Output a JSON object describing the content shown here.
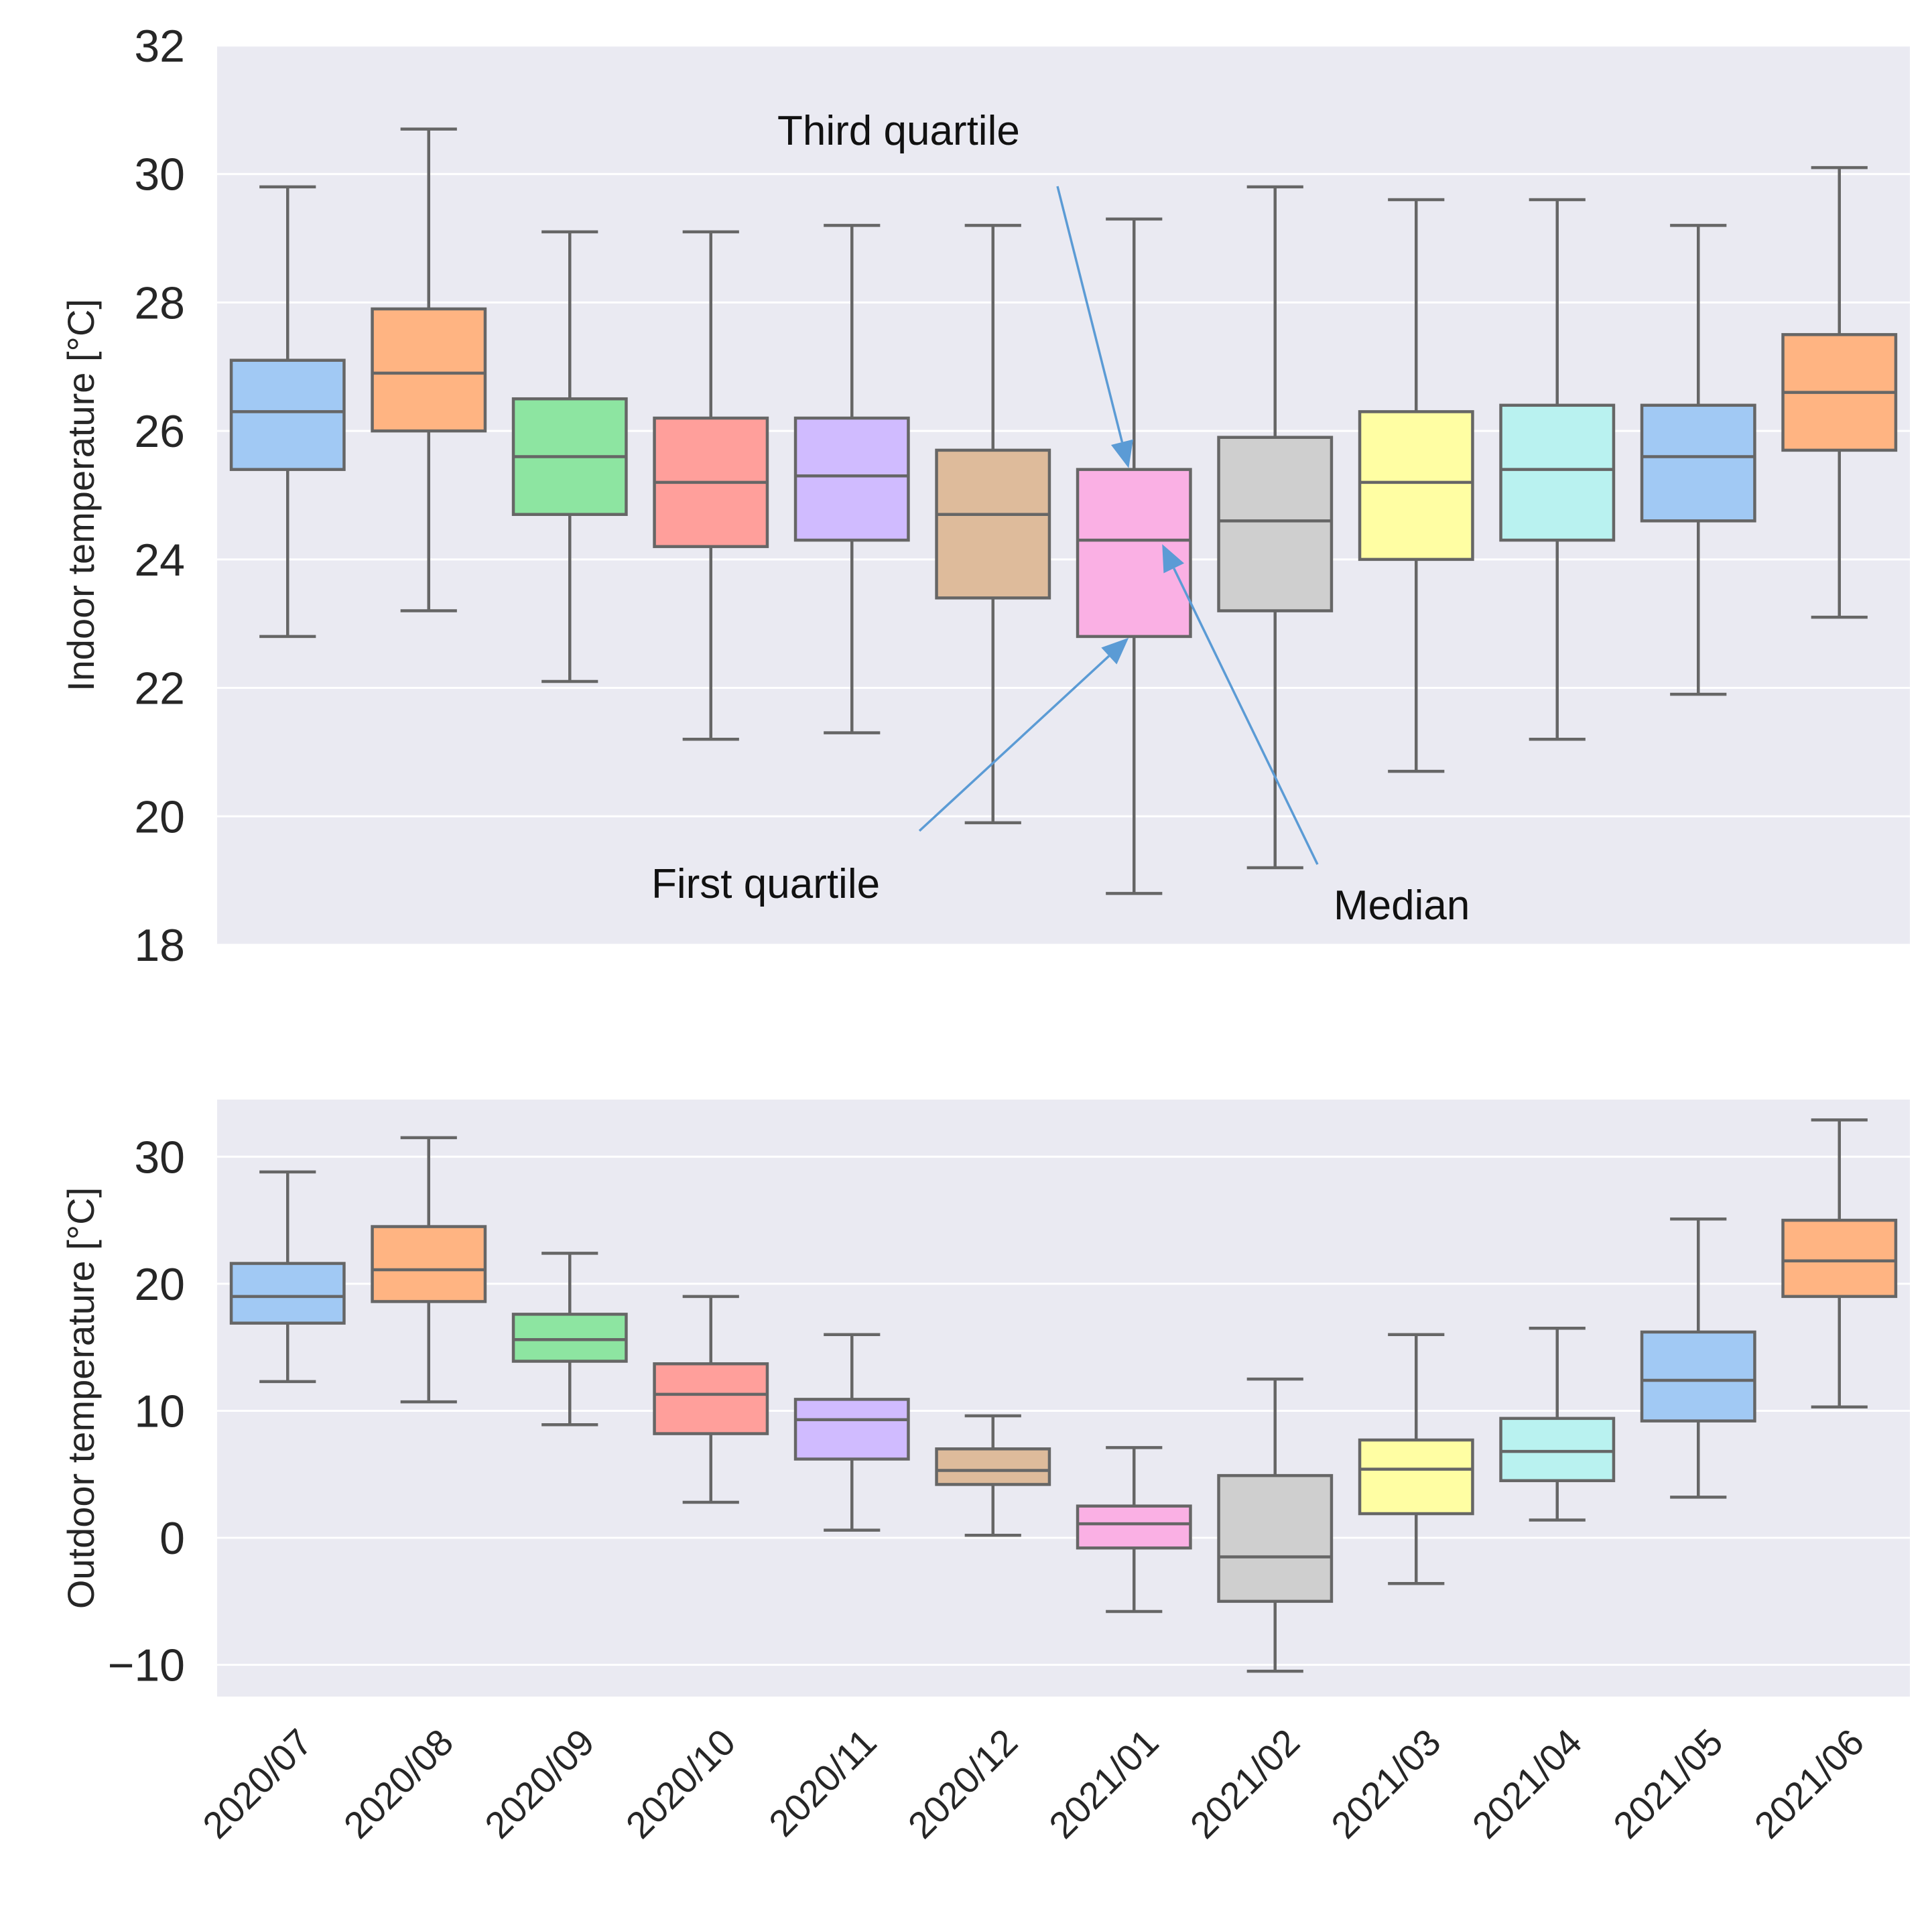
{
  "chart_data": [
    {
      "type": "box",
      "ylabel": "Indoor temperature [°C]",
      "ylim": [
        18,
        32
      ],
      "yticks": [
        18,
        20,
        22,
        24,
        26,
        28,
        30,
        32
      ],
      "grid": true,
      "categories": [
        "2020/07",
        "2020/08",
        "2020/09",
        "2020/10",
        "2020/11",
        "2020/12",
        "2021/01",
        "2021/02",
        "2021/03",
        "2021/04",
        "2021/05",
        "2021/06"
      ],
      "boxes": [
        {
          "whislo": 22.8,
          "q1": 25.4,
          "med": 26.3,
          "q3": 27.1,
          "whishi": 29.8
        },
        {
          "whislo": 23.2,
          "q1": 26.0,
          "med": 26.9,
          "q3": 27.9,
          "whishi": 30.7
        },
        {
          "whislo": 22.1,
          "q1": 24.7,
          "med": 25.6,
          "q3": 26.5,
          "whishi": 29.1
        },
        {
          "whislo": 21.2,
          "q1": 24.2,
          "med": 25.2,
          "q3": 26.2,
          "whishi": 29.1
        },
        {
          "whislo": 21.3,
          "q1": 24.3,
          "med": 25.3,
          "q3": 26.2,
          "whishi": 29.2
        },
        {
          "whislo": 19.9,
          "q1": 23.4,
          "med": 24.7,
          "q3": 25.7,
          "whishi": 29.2
        },
        {
          "whislo": 18.8,
          "q1": 22.8,
          "med": 24.3,
          "q3": 25.4,
          "whishi": 29.3
        },
        {
          "whislo": 19.2,
          "q1": 23.2,
          "med": 24.6,
          "q3": 25.9,
          "whishi": 29.8
        },
        {
          "whislo": 20.7,
          "q1": 24.0,
          "med": 25.2,
          "q3": 26.3,
          "whishi": 29.6
        },
        {
          "whislo": 21.2,
          "q1": 24.3,
          "med": 25.4,
          "q3": 26.4,
          "whishi": 29.6
        },
        {
          "whislo": 21.9,
          "q1": 24.6,
          "med": 25.6,
          "q3": 26.4,
          "whishi": 29.2
        },
        {
          "whislo": 23.1,
          "q1": 25.7,
          "med": 26.6,
          "q3": 27.5,
          "whishi": 30.1
        }
      ],
      "annotations": [
        {
          "text": "Third quartile",
          "target": {
            "category": "2021/01",
            "stat": "q3"
          }
        },
        {
          "text": "First quartile",
          "target": {
            "category": "2021/01",
            "stat": "q1"
          }
        },
        {
          "text": "Median",
          "target": {
            "category": "2021/01",
            "stat": "med"
          }
        }
      ]
    },
    {
      "type": "box",
      "ylabel": "Outdoor temperature [°C]",
      "ylim": [
        -12.5,
        34.5
      ],
      "yticks": [
        -10,
        0,
        10,
        20,
        30
      ],
      "ytick_labels": [
        "−10",
        "0",
        "10",
        "20",
        "30"
      ],
      "grid": true,
      "categories": [
        "2020/07",
        "2020/08",
        "2020/09",
        "2020/10",
        "2020/11",
        "2020/12",
        "2021/01",
        "2021/02",
        "2021/03",
        "2021/04",
        "2021/05",
        "2021/06"
      ],
      "boxes": [
        {
          "whislo": 12.3,
          "q1": 16.9,
          "med": 19.0,
          "q3": 21.6,
          "whishi": 28.8
        },
        {
          "whislo": 10.7,
          "q1": 18.6,
          "med": 21.1,
          "q3": 24.5,
          "whishi": 31.5
        },
        {
          "whislo": 8.9,
          "q1": 13.9,
          "med": 15.6,
          "q3": 17.6,
          "whishi": 22.4
        },
        {
          "whislo": 2.8,
          "q1": 8.2,
          "med": 11.3,
          "q3": 13.7,
          "whishi": 19.0
        },
        {
          "whislo": 0.6,
          "q1": 6.2,
          "med": 9.3,
          "q3": 10.9,
          "whishi": 16.0
        },
        {
          "whislo": 0.2,
          "q1": 4.2,
          "med": 5.3,
          "q3": 7.0,
          "whishi": 9.6
        },
        {
          "whislo": -5.8,
          "q1": -0.8,
          "med": 1.1,
          "q3": 2.5,
          "whishi": 7.1
        },
        {
          "whislo": -10.5,
          "q1": -5.0,
          "med": -1.5,
          "q3": 4.9,
          "whishi": 12.5
        },
        {
          "whislo": -3.6,
          "q1": 1.9,
          "med": 5.4,
          "q3": 7.7,
          "whishi": 16.0
        },
        {
          "whislo": 1.4,
          "q1": 4.5,
          "med": 6.8,
          "q3": 9.4,
          "whishi": 16.5
        },
        {
          "whislo": 3.2,
          "q1": 9.2,
          "med": 12.4,
          "q3": 16.2,
          "whishi": 25.1
        },
        {
          "whislo": 10.3,
          "q1": 19.0,
          "med": 21.8,
          "q3": 25.0,
          "whishi": 32.9
        }
      ]
    }
  ],
  "colors": {
    "background": "#eaeaf2",
    "grid": "#ffffff",
    "box_line": "#666666",
    "arrow": "#5b9bd5",
    "palette": [
      "#a1c9f4",
      "#ffb482",
      "#8de5a1",
      "#ff9f9b",
      "#d0bbff",
      "#debb9b",
      "#fab0e4",
      "#cfcfcf",
      "#fffea3",
      "#b9f2f0",
      "#a1c9f4",
      "#ffb482"
    ]
  }
}
